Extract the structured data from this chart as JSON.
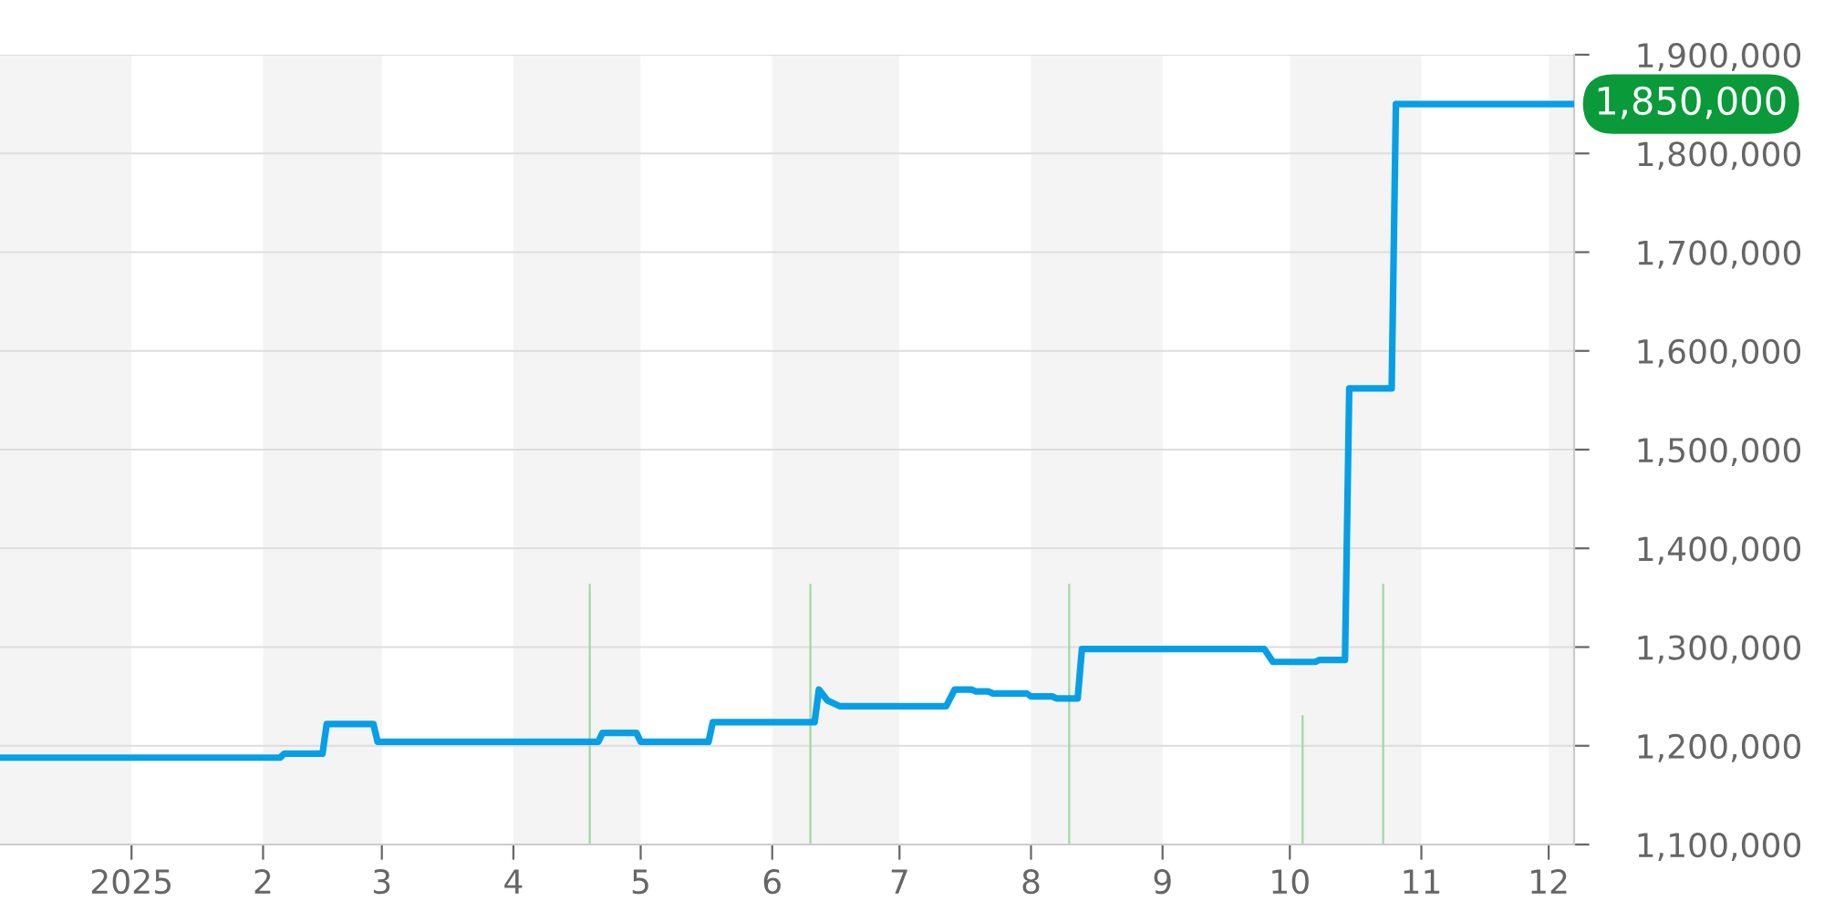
{
  "chart_data": {
    "type": "line",
    "xlim": [
      "2024-12-01",
      "2025-12-07"
    ],
    "xticks": [
      {
        "value": "2025-01-01",
        "label": "2025"
      },
      {
        "value": "2025-02-01",
        "label": "2"
      },
      {
        "value": "2025-03-01",
        "label": "3"
      },
      {
        "value": "2025-04-01",
        "label": "4"
      },
      {
        "value": "2025-05-01",
        "label": "5"
      },
      {
        "value": "2025-06-01",
        "label": "6"
      },
      {
        "value": "2025-07-01",
        "label": "7"
      },
      {
        "value": "2025-08-01",
        "label": "8"
      },
      {
        "value": "2025-09-01",
        "label": "9"
      },
      {
        "value": "2025-10-01",
        "label": "10"
      },
      {
        "value": "2025-11-01",
        "label": "11"
      },
      {
        "value": "2025-12-01",
        "label": "12"
      }
    ],
    "ylim": [
      1100000,
      1900000
    ],
    "yticks": [
      {
        "value": 1100000,
        "label": "1,100,000"
      },
      {
        "value": 1200000,
        "label": "1,200,000"
      },
      {
        "value": 1300000,
        "label": "1,300,000"
      },
      {
        "value": 1400000,
        "label": "1,400,000"
      },
      {
        "value": 1500000,
        "label": "1,500,000"
      },
      {
        "value": 1600000,
        "label": "1,600,000"
      },
      {
        "value": 1700000,
        "label": "1,700,000"
      },
      {
        "value": 1800000,
        "label": "1,800,000"
      },
      {
        "value": 1900000,
        "label": "1,900,000"
      }
    ],
    "grid": "y",
    "series": [
      {
        "type": "bar",
        "color": "#a3d9a5",
        "x": [
          "2025-04-19",
          "2025-06-10",
          "2025-08-10",
          "2025-10-04",
          "2025-10-23"
        ],
        "values": [
          1364000,
          1364000,
          1364000,
          1231000,
          1364000
        ]
      },
      {
        "color": "#069fe6",
        "x": [
          "2024-12-01",
          "2025-02-05",
          "2025-02-06",
          "2025-02-15",
          "2025-02-16",
          "2025-02-27",
          "2025-02-28",
          "2025-04-21",
          "2025-04-22",
          "2025-04-30",
          "2025-05-01",
          "2025-05-17",
          "2025-05-18",
          "2025-06-11",
          "2025-06-12",
          "2025-06-14",
          "2025-06-17",
          "2025-07-12",
          "2025-07-14",
          "2025-07-18",
          "2025-07-19",
          "2025-07-22",
          "2025-07-23",
          "2025-07-31",
          "2025-08-01",
          "2025-08-06",
          "2025-08-07",
          "2025-08-12",
          "2025-08-13",
          "2025-09-25",
          "2025-09-27",
          "2025-10-07",
          "2025-10-08",
          "2025-10-14",
          "2025-10-15",
          "2025-10-25",
          "2025-10-26",
          "2025-12-07"
        ],
        "values": [
          1188000,
          1188000,
          1192000,
          1192000,
          1222000,
          1222000,
          1204000,
          1204000,
          1213000,
          1213000,
          1204000,
          1204000,
          1224000,
          1224000,
          1257000,
          1246000,
          1240000,
          1240000,
          1257000,
          1257000,
          1255000,
          1255000,
          1253000,
          1253000,
          1250000,
          1250000,
          1248000,
          1248000,
          1298000,
          1298000,
          1285000,
          1285000,
          1287000,
          1287000,
          1562000,
          1562000,
          1850000,
          1850000
        ]
      }
    ],
    "bands": [
      {
        "axis": "x",
        "from": "2024-12-01",
        "to": "2025-01-01",
        "color": "#f4f4f4"
      },
      {
        "axis": "x",
        "from": "2025-02-01",
        "to": "2025-03-01",
        "color": "#f4f4f4"
      },
      {
        "axis": "x",
        "from": "2025-04-01",
        "to": "2025-05-01",
        "color": "#f4f4f4"
      },
      {
        "axis": "x",
        "from": "2025-06-01",
        "to": "2025-07-01",
        "color": "#f4f4f4"
      },
      {
        "axis": "x",
        "from": "2025-08-01",
        "to": "2025-09-01",
        "color": "#f4f4f4"
      },
      {
        "axis": "x",
        "from": "2025-10-01",
        "to": "2025-11-01",
        "color": "#f4f4f4"
      },
      {
        "axis": "x",
        "from": "2025-12-01",
        "to": "2025-12-07",
        "color": "#f4f4f4"
      }
    ],
    "annotations": [
      {
        "text": "1,850,000",
        "x": "2025-12-07",
        "y": 1850000
      }
    ]
  }
}
